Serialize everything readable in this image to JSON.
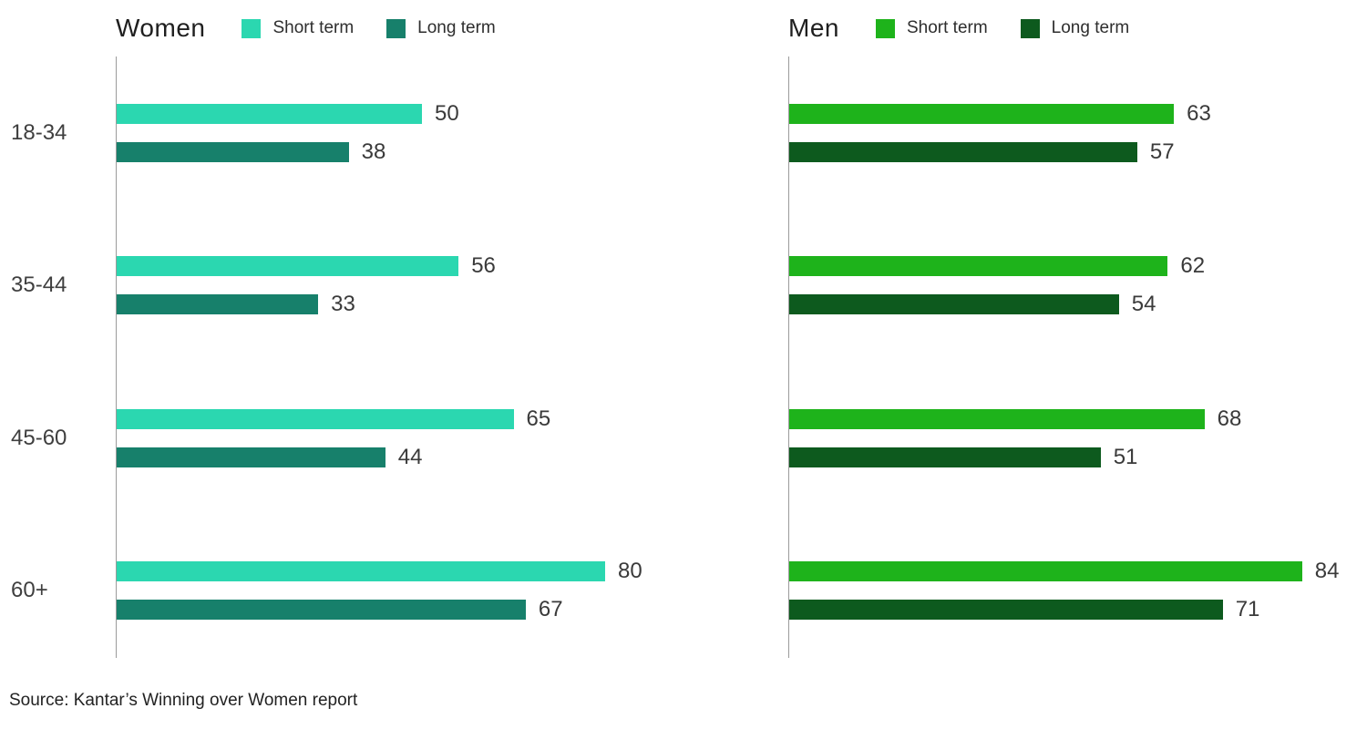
{
  "source_note": "Source: Kantar’s Winning over Women report",
  "chart_data": [
    {
      "type": "bar",
      "orientation": "horizontal",
      "title": "Women",
      "categories": [
        "18-34",
        "35-44",
        "45-60",
        "60+"
      ],
      "series": [
        {
          "name": "Short term",
          "color": "#2BD7B0",
          "values": [
            50,
            56,
            65,
            80
          ]
        },
        {
          "name": "Long term",
          "color": "#17806B",
          "values": [
            38,
            33,
            44,
            67
          ]
        }
      ],
      "xlim": [
        0,
        100
      ],
      "grid": false,
      "legend_position": "top",
      "value_labels": true
    },
    {
      "type": "bar",
      "orientation": "horizontal",
      "title": "Men",
      "categories": [
        "18-34",
        "35-44",
        "45-60",
        "60+"
      ],
      "series": [
        {
          "name": "Short term",
          "color": "#1EB31B",
          "values": [
            63,
            62,
            68,
            84
          ]
        },
        {
          "name": "Long term",
          "color": "#0D5A1E",
          "values": [
            57,
            54,
            51,
            71
          ]
        }
      ],
      "xlim": [
        0,
        100
      ],
      "grid": false,
      "legend_position": "top",
      "value_labels": true
    }
  ]
}
